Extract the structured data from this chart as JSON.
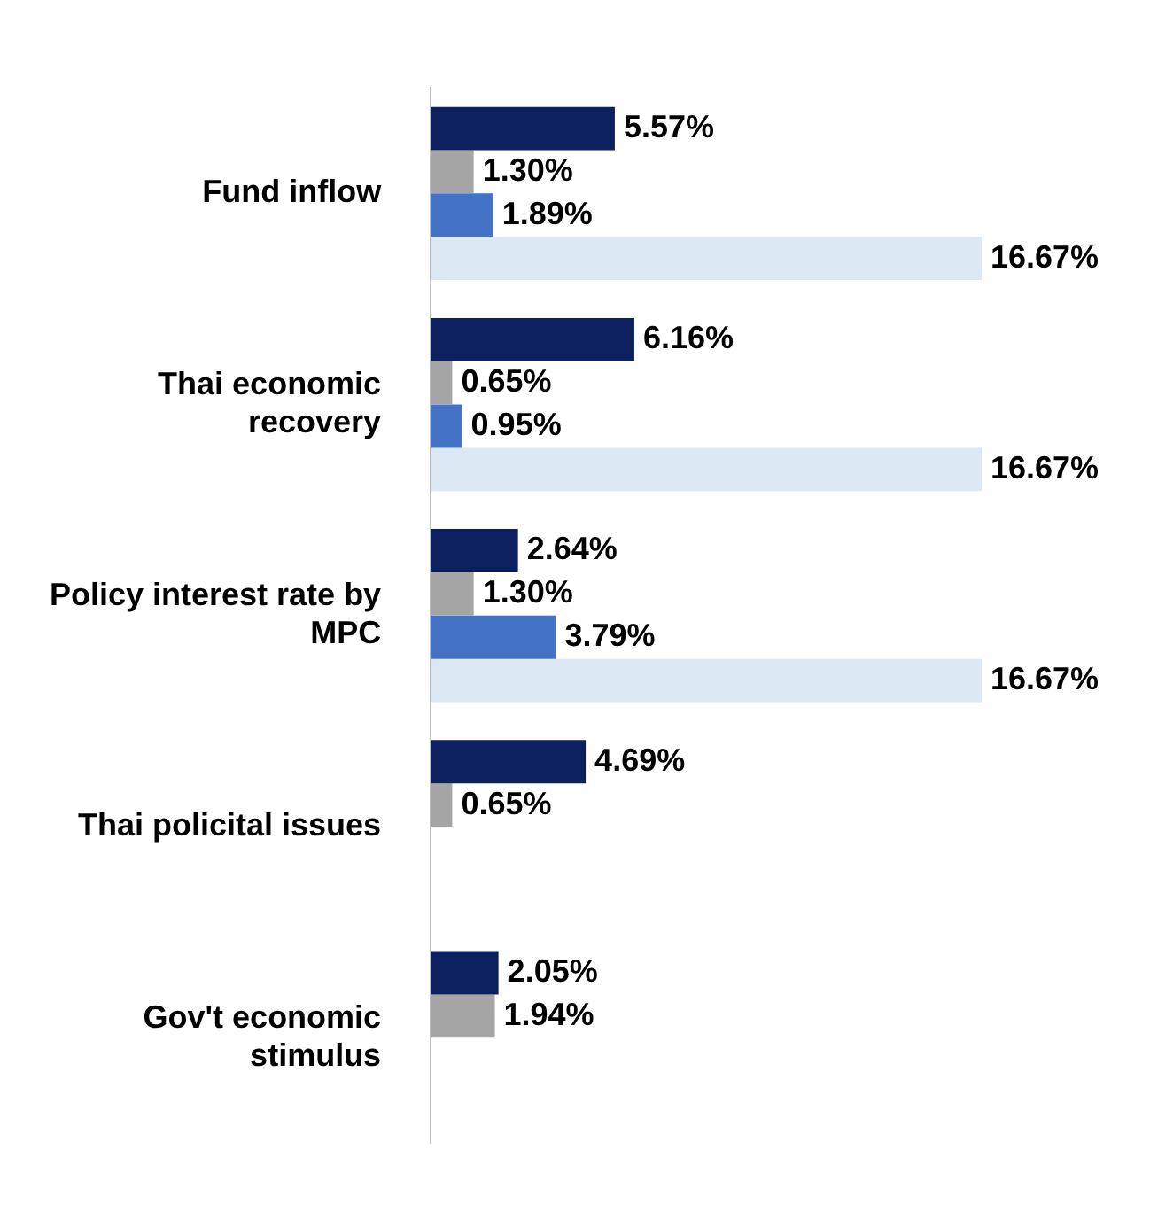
{
  "chart_data": {
    "type": "bar",
    "orientation": "horizontal",
    "categories": [
      "Fund inflow",
      "Thai economic recovery",
      "Policy interest rate by MPC",
      "Thai policital issues",
      "Gov't economic stimulus"
    ],
    "series": [
      {
        "color": "#0c1f5e",
        "values": [
          5.57,
          6.16,
          2.64,
          4.69,
          2.05
        ],
        "value_labels": [
          "5.57%",
          "6.16%",
          "2.64%",
          "4.69%",
          "2.05%"
        ]
      },
      {
        "color": "#a5a5a5",
        "values": [
          1.3,
          0.65,
          1.3,
          0.65,
          1.94
        ],
        "value_labels": [
          "1.30%",
          "0.65%",
          "1.30%",
          "0.65%",
          "1.94%"
        ]
      },
      {
        "color": "#4472c4",
        "values": [
          1.89,
          0.95,
          3.79,
          null,
          null
        ],
        "value_labels": [
          "1.89%",
          "0.95%",
          "3.79%",
          null,
          null
        ]
      },
      {
        "color": "#dde8f5",
        "values": [
          16.67,
          16.67,
          16.67,
          null,
          null
        ],
        "value_labels": [
          "16.67%",
          "16.67%",
          "16.67%",
          null,
          null
        ]
      }
    ],
    "xlim": [
      0,
      16.67
    ],
    "grid": false,
    "legend": false,
    "tick_labels": "y"
  }
}
